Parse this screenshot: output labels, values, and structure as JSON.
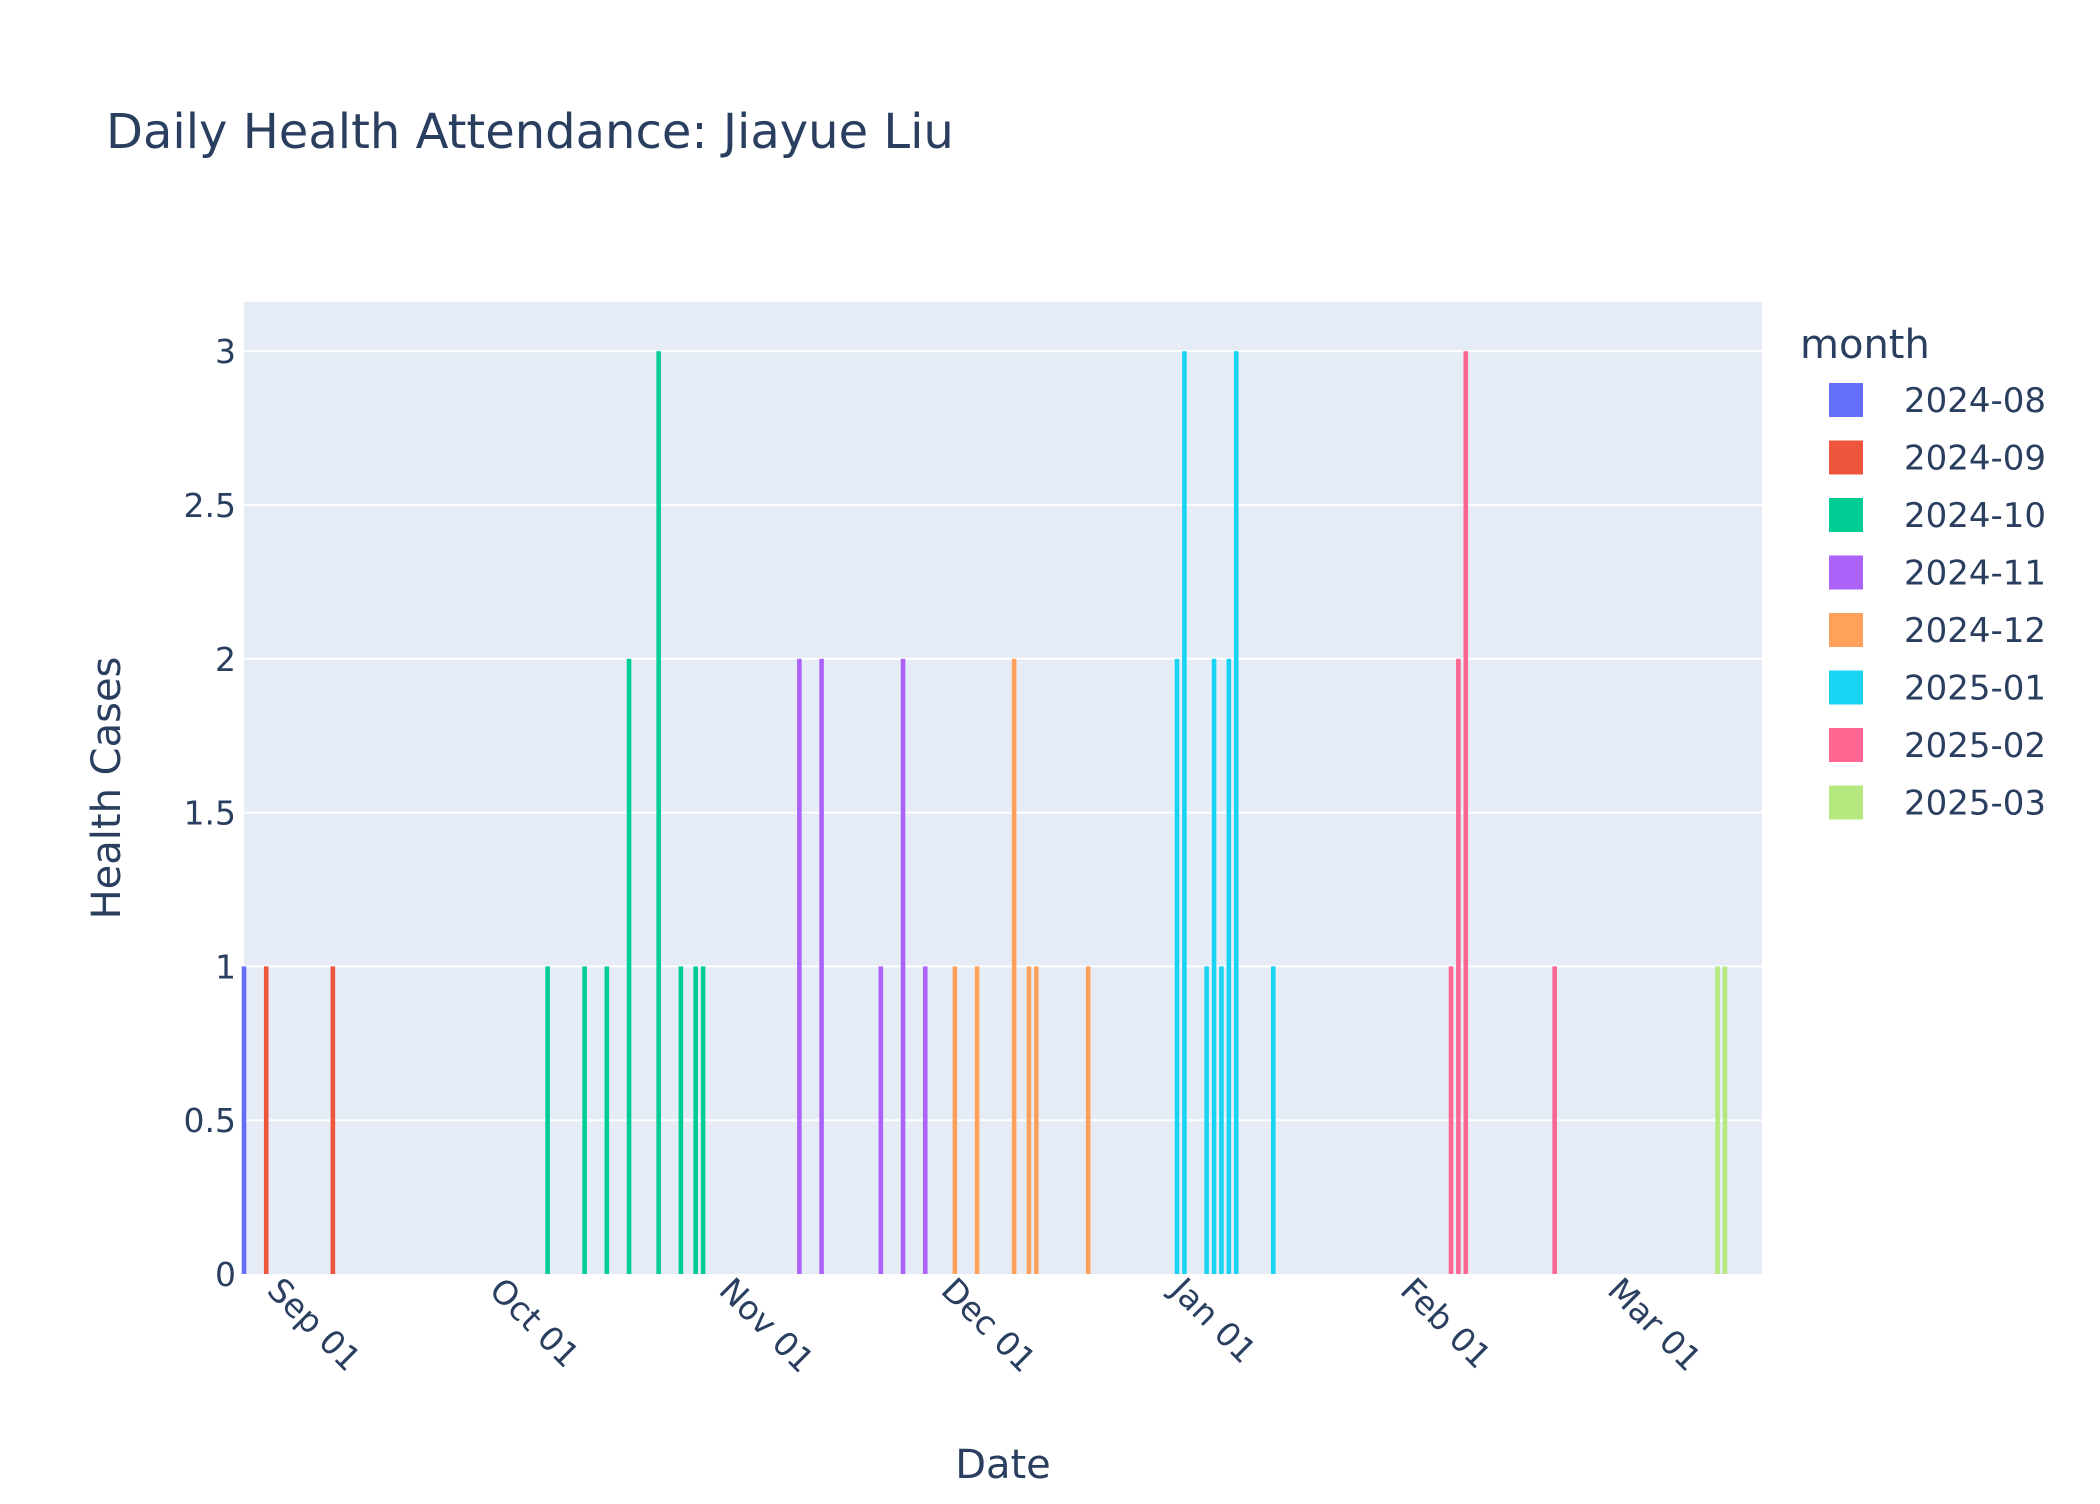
{
  "chart_data": {
    "type": "bar",
    "title": "Daily Health Attendance: Jiayue Liu",
    "xlabel": "Date",
    "ylabel": "Health Cases",
    "x_ticks": [
      "Sep 01",
      "Oct 01",
      "Nov 01",
      "Dec 01",
      "Jan 01",
      "Feb 01",
      "Mar 01"
    ],
    "x_tick_dates": [
      "2024-09-01",
      "2024-10-01",
      "2024-11-01",
      "2024-12-01",
      "2025-01-01",
      "2025-02-01",
      "2025-03-01"
    ],
    "xlim": [
      "2024-08-28",
      "2025-03-21"
    ],
    "ylim": [
      0,
      3.16
    ],
    "y_ticks": [
      "0",
      "0.5",
      "1",
      "1.5",
      "2",
      "2.5",
      "3"
    ],
    "y_tick_values": [
      0,
      0.5,
      1,
      1.5,
      2,
      2.5,
      3
    ],
    "grid": true,
    "plot_background": "#e5ecf6",
    "legend": {
      "title": "month",
      "position": "right"
    },
    "series": [
      {
        "name": "2024-08",
        "color": "#636efa",
        "points": [
          {
            "date": "2024-08-28",
            "value": 1
          }
        ]
      },
      {
        "name": "2024-09",
        "color": "#ef553b",
        "points": [
          {
            "date": "2024-08-31",
            "value": 1
          },
          {
            "date": "2024-09-09",
            "value": 1
          }
        ]
      },
      {
        "name": "2024-10",
        "color": "#00cc96",
        "points": [
          {
            "date": "2024-10-08",
            "value": 1
          },
          {
            "date": "2024-10-13",
            "value": 1
          },
          {
            "date": "2024-10-16",
            "value": 1
          },
          {
            "date": "2024-10-19",
            "value": 2
          },
          {
            "date": "2024-10-23",
            "value": 3
          },
          {
            "date": "2024-10-26",
            "value": 1
          },
          {
            "date": "2024-10-28",
            "value": 1
          },
          {
            "date": "2024-10-29",
            "value": 1
          }
        ]
      },
      {
        "name": "2024-11",
        "color": "#ab63fa",
        "points": [
          {
            "date": "2024-11-11",
            "value": 2
          },
          {
            "date": "2024-11-14",
            "value": 2
          },
          {
            "date": "2024-11-22",
            "value": 1
          },
          {
            "date": "2024-11-25",
            "value": 2
          },
          {
            "date": "2024-11-28",
            "value": 1
          }
        ]
      },
      {
        "name": "2024-12",
        "color": "#ffa15a",
        "points": [
          {
            "date": "2024-12-02",
            "value": 1
          },
          {
            "date": "2024-12-05",
            "value": 1
          },
          {
            "date": "2024-12-10",
            "value": 2
          },
          {
            "date": "2024-12-12",
            "value": 1
          },
          {
            "date": "2024-12-13",
            "value": 1
          },
          {
            "date": "2024-12-20",
            "value": 1
          }
        ]
      },
      {
        "name": "2025-01",
        "color": "#19d3f3",
        "points": [
          {
            "date": "2025-01-01",
            "value": 2
          },
          {
            "date": "2025-01-02",
            "value": 3
          },
          {
            "date": "2025-01-05",
            "value": 1
          },
          {
            "date": "2025-01-06",
            "value": 2
          },
          {
            "date": "2025-01-07",
            "value": 1
          },
          {
            "date": "2025-01-08",
            "value": 2
          },
          {
            "date": "2025-01-09",
            "value": 3
          },
          {
            "date": "2025-01-14",
            "value": 1
          }
        ]
      },
      {
        "name": "2025-02",
        "color": "#ff6692",
        "points": [
          {
            "date": "2025-02-07",
            "value": 1
          },
          {
            "date": "2025-02-08",
            "value": 2
          },
          {
            "date": "2025-02-09",
            "value": 3
          },
          {
            "date": "2025-02-21",
            "value": 1
          }
        ]
      },
      {
        "name": "2025-03",
        "color": "#b6e880",
        "points": [
          {
            "date": "2025-03-15",
            "value": 1
          },
          {
            "date": "2025-03-16",
            "value": 1
          }
        ]
      }
    ]
  }
}
